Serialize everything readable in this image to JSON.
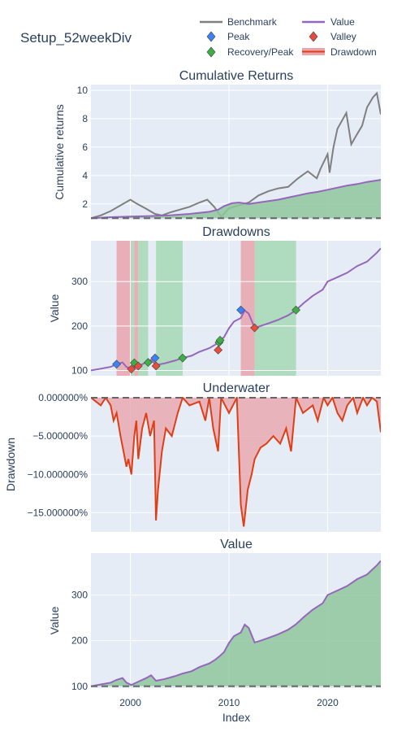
{
  "figure": {
    "title": "Setup_52weekDiv",
    "xaxis_label": "Index",
    "x_ticks": [
      "2000",
      "2010",
      "2020"
    ],
    "x_tick_values": [
      2000,
      2010,
      2020
    ],
    "x_range": [
      1996,
      2025.4
    ],
    "colors": {
      "benchmark": "#7f7f7f",
      "value": "#9467bd",
      "peak": "#3b82f6",
      "valley": "#e74c3c",
      "recovery": "#3cb044",
      "drawdown": "#dd3f16",
      "fill_green": "#8fc79b",
      "shade_red": "#e9a5ad",
      "shade_green": "#a6d8b4",
      "plot_bg": "#e5ecf6"
    }
  },
  "legend": {
    "benchmark": "Benchmark",
    "value": "Value",
    "peak": "Peak",
    "valley": "Valley",
    "recovery": "Recovery/Peak",
    "drawdown": "Drawdown"
  },
  "chart_data": [
    {
      "type": "line",
      "title": "Cumulative Returns",
      "ylabel": "Cumulative returns",
      "ylim": [
        0.9,
        10.4
      ],
      "y_ticks": [
        2,
        4,
        6,
        8,
        10
      ],
      "series": [
        {
          "name": "Benchmark",
          "x": [
            1996,
            1997,
            1998,
            1999,
            2000,
            2000.7,
            2001.5,
            2002.5,
            2003.2,
            2004,
            2005,
            2006,
            2007,
            2007.8,
            2008.5,
            2009.2,
            2010,
            2011,
            2012,
            2013,
            2014,
            2015,
            2016,
            2017,
            2018,
            2018.9,
            2019.3,
            2020,
            2020.2,
            2020.6,
            2021,
            2021.9,
            2022.4,
            2022.9,
            2023.5,
            2024,
            2024.6,
            2025,
            2025.4
          ],
          "y": [
            1.0,
            1.2,
            1.5,
            1.9,
            2.3,
            2.0,
            1.7,
            1.3,
            1.2,
            1.4,
            1.6,
            1.8,
            2.1,
            2.3,
            1.8,
            1.1,
            1.7,
            1.9,
            2.1,
            2.6,
            2.9,
            3.1,
            3.2,
            3.8,
            4.3,
            3.8,
            4.5,
            5.5,
            4.2,
            6.0,
            7.3,
            8.4,
            6.2,
            6.8,
            7.5,
            8.8,
            9.5,
            9.8,
            8.3
          ]
        },
        {
          "name": "Value",
          "x": [
            1996,
            1998,
            2000,
            2002,
            2004,
            2006,
            2008,
            2008.9,
            2009.5,
            2010.3,
            2011,
            2012,
            2013,
            2014,
            2015,
            2016,
            2017,
            2018,
            2019,
            2020,
            2021,
            2022,
            2023,
            2024,
            2025,
            2025.4
          ],
          "y": [
            1.0,
            1.07,
            1.12,
            1.15,
            1.2,
            1.3,
            1.45,
            1.6,
            1.85,
            2.05,
            2.1,
            2.0,
            2.1,
            2.2,
            2.3,
            2.45,
            2.6,
            2.75,
            2.85,
            3.0,
            3.15,
            3.3,
            3.4,
            3.55,
            3.65,
            3.7
          ]
        }
      ],
      "baseline": 1.0
    },
    {
      "type": "line",
      "title": "Drawdowns",
      "ylabel": "Value",
      "ylim": [
        88,
        392
      ],
      "y_ticks": [
        100,
        200,
        300
      ],
      "series": [
        {
          "name": "Value",
          "x": [
            1996,
            1997,
            1998,
            1998.6,
            1999.2,
            1999.6,
            2000.1,
            2000.8,
            2001.6,
            2002.1,
            2002.6,
            2003.5,
            2004.5,
            2005.3,
            2006.2,
            2007,
            2008,
            2008.6,
            2009,
            2009.5,
            2010,
            2010.5,
            2011.2,
            2011.6,
            2012,
            2012.6,
            2013.2,
            2014,
            2015,
            2016,
            2016.8,
            2017.6,
            2018.5,
            2019.5,
            2020,
            2021,
            2022,
            2023,
            2024,
            2025,
            2025.4
          ],
          "y": [
            100,
            104,
            108,
            114,
            118,
            108,
            103,
            110,
            118,
            124,
            112,
            116,
            122,
            128,
            133,
            142,
            150,
            158,
            165,
            175,
            195,
            210,
            218,
            235,
            228,
            196,
            200,
            206,
            214,
            224,
            236,
            252,
            268,
            282,
            300,
            310,
            320,
            335,
            345,
            365,
            375
          ]
        }
      ],
      "markers": {
        "peak": [
          [
            1998.6,
            114
          ],
          [
            2002.5,
            128
          ],
          [
            2011.2,
            236
          ]
        ],
        "valley": [
          [
            2000.1,
            103
          ],
          [
            2000.8,
            110
          ],
          [
            2002.6,
            110
          ],
          [
            2008.9,
            146
          ],
          [
            2012.6,
            196
          ]
        ],
        "recovery": [
          [
            2000.4,
            117
          ],
          [
            2001.8,
            118
          ],
          [
            2005.3,
            128
          ],
          [
            2009.0,
            163
          ],
          [
            2009.1,
            168
          ],
          [
            2016.8,
            236
          ]
        ]
      },
      "drawdown_periods": [
        [
          1998.6,
          2000.1
        ],
        [
          2000.4,
          2000.8
        ],
        [
          2011.2,
          2012.6
        ]
      ],
      "recovery_periods": [
        [
          2000.1,
          2000.4
        ],
        [
          2000.8,
          2001.8
        ],
        [
          2002.6,
          2005.3
        ],
        [
          2012.6,
          2016.8
        ]
      ]
    },
    {
      "type": "area",
      "title": "Underwater",
      "ylabel": "Drawdown",
      "ylim": [
        -0.175,
        0.001
      ],
      "y_ticks": [
        0,
        -0.05,
        -0.1,
        -0.15
      ],
      "y_tick_labels": [
        "0.000000%",
        "−5.000000%",
        "−10.000000%",
        "−15.000000%"
      ],
      "series": [
        {
          "name": "Drawdown",
          "x": [
            1996,
            1996.5,
            1997,
            1997.5,
            1998,
            1998.3,
            1998.6,
            1999.0,
            1999.3,
            1999.6,
            1999.8,
            2000.1,
            2000.4,
            2000.6,
            2000.8,
            2001.2,
            2001.6,
            2002.0,
            2002.4,
            2002.6,
            2002.8,
            2003.2,
            2003.6,
            2004.2,
            2004.8,
            2005.3,
            2006,
            2007,
            2007.6,
            2008,
            2008.4,
            2008.9,
            2009.2,
            2010,
            2010.8,
            2011.2,
            2011.5,
            2011.9,
            2012.3,
            2012.6,
            2013.2,
            2013.8,
            2014.5,
            2015.2,
            2015.8,
            2016.3,
            2016.8,
            2017.5,
            2018.5,
            2019,
            2019.6,
            2020,
            2020.5,
            2021,
            2021.5,
            2022,
            2022.6,
            2023,
            2023.6,
            2024,
            2024.5,
            2025,
            2025.4
          ],
          "y": [
            0,
            -0.005,
            -0.01,
            0,
            -0.01,
            -0.03,
            -0.02,
            -0.05,
            -0.07,
            -0.09,
            -0.08,
            -0.1,
            -0.05,
            -0.03,
            -0.08,
            -0.04,
            -0.02,
            -0.05,
            -0.03,
            -0.16,
            -0.12,
            -0.07,
            -0.04,
            -0.05,
            -0.02,
            0,
            -0.01,
            -0.005,
            -0.03,
            0,
            -0.04,
            -0.07,
            0,
            -0.02,
            0,
            -0.14,
            -0.168,
            -0.12,
            -0.1,
            -0.08,
            -0.065,
            -0.06,
            -0.05,
            -0.06,
            -0.04,
            -0.07,
            0,
            -0.02,
            -0.01,
            -0.03,
            0,
            -0.01,
            0,
            -0.02,
            -0.03,
            -0.01,
            0,
            -0.02,
            0,
            -0.01,
            0,
            -0.005,
            -0.045
          ]
        }
      ]
    },
    {
      "type": "area",
      "title": "Value",
      "ylabel": "Value",
      "ylim": [
        96,
        392
      ],
      "y_ticks": [
        100,
        200,
        300
      ],
      "baseline": 100,
      "series": [
        {
          "name": "Value",
          "x": [
            1996,
            1997,
            1998,
            1998.6,
            1999.2,
            1999.6,
            2000.1,
            2000.8,
            2001.6,
            2002.1,
            2002.6,
            2003.5,
            2004.5,
            2005.3,
            2006.2,
            2007,
            2008,
            2008.6,
            2009,
            2009.5,
            2010,
            2010.5,
            2011.2,
            2011.6,
            2012,
            2012.6,
            2013.2,
            2014,
            2015,
            2016,
            2016.8,
            2017.6,
            2018.5,
            2019.5,
            2020,
            2021,
            2022,
            2023,
            2024,
            2025,
            2025.4
          ],
          "y": [
            100,
            104,
            108,
            114,
            118,
            108,
            103,
            110,
            118,
            124,
            112,
            116,
            122,
            128,
            133,
            142,
            150,
            158,
            165,
            175,
            195,
            210,
            218,
            235,
            228,
            196,
            200,
            206,
            214,
            224,
            236,
            252,
            268,
            282,
            300,
            310,
            320,
            335,
            345,
            365,
            375
          ]
        }
      ]
    }
  ]
}
